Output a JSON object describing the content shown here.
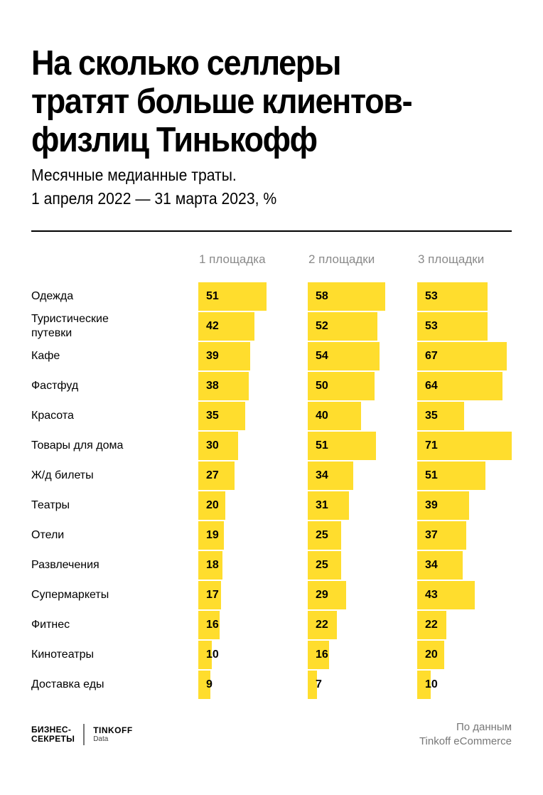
{
  "header": {
    "title_lines": [
      "На сколько селлеры",
      "тратят больше клиентов-",
      "физлиц Тинькофф"
    ],
    "subtitle_lines": [
      "Месячные медианные траты.",
      "1 апреля 2022 — 31 марта 2023, %"
    ]
  },
  "columns": [
    "1 площадка",
    "2 площадки",
    "3 площадки"
  ],
  "rows": [
    {
      "label": "Одежда",
      "values": [
        "51",
        "58",
        "53"
      ]
    },
    {
      "label": "Туристические путевки",
      "values": [
        "42",
        "52",
        "53"
      ]
    },
    {
      "label": "Кафе",
      "values": [
        "39",
        "54",
        "67"
      ]
    },
    {
      "label": "Фастфуд",
      "values": [
        "38",
        "50",
        "64"
      ]
    },
    {
      "label": "Красота",
      "values": [
        "35",
        "40",
        "35"
      ]
    },
    {
      "label": "Товары для дома",
      "values": [
        "30",
        "51",
        "71"
      ]
    },
    {
      "label": "Ж/д билеты",
      "values": [
        "27",
        "34",
        "51"
      ]
    },
    {
      "label": "Театры",
      "values": [
        "20",
        "31",
        "39"
      ]
    },
    {
      "label": "Отели",
      "values": [
        "19",
        "25",
        "37"
      ]
    },
    {
      "label": "Развлечения",
      "values": [
        "18",
        "25",
        "34"
      ]
    },
    {
      "label": "Супермаркеты",
      "values": [
        "17",
        "29",
        "43"
      ]
    },
    {
      "label": "Фитнес",
      "values": [
        "16",
        "22",
        "22"
      ]
    },
    {
      "label": "Кинотеатры",
      "values": [
        "10",
        "16",
        "20"
      ]
    },
    {
      "label": "Доставка еды",
      "values": [
        "9",
        "7",
        "10"
      ]
    }
  ],
  "footer": {
    "logo_left": [
      "БИЗНЕС-",
      "СЕКРЕТЫ"
    ],
    "logo_right_title": "TINKOFF",
    "logo_right_sub": "Data",
    "source_lines": [
      "По данным",
      "Tinkoff eCommerce"
    ]
  },
  "colors": {
    "bar": "#FFDD2D",
    "text": "#000000",
    "muted": "#8a8a8a"
  },
  "chart_data": {
    "type": "bar",
    "orientation": "horizontal",
    "title": "На сколько селлеры тратят больше клиентов-физлиц Тинькофф",
    "subtitle": "Месячные медианные траты. 1 апреля 2022 — 31 марта 2023, %",
    "categories": [
      "Одежда",
      "Туристические путевки",
      "Кафе",
      "Фастфуд",
      "Красота",
      "Товары для дома",
      "Ж/д билеты",
      "Театры",
      "Отели",
      "Развлечения",
      "Супермаркеты",
      "Фитнес",
      "Кинотеатры",
      "Доставка еды"
    ],
    "series": [
      {
        "name": "1 площадка",
        "values": [
          51,
          42,
          39,
          38,
          35,
          30,
          27,
          20,
          19,
          18,
          17,
          16,
          10,
          9
        ]
      },
      {
        "name": "2 площадки",
        "values": [
          58,
          52,
          54,
          50,
          40,
          51,
          34,
          31,
          25,
          25,
          29,
          22,
          16,
          7
        ]
      },
      {
        "name": "3 площадки",
        "values": [
          53,
          53,
          67,
          64,
          35,
          71,
          51,
          39,
          37,
          34,
          43,
          22,
          20,
          10
        ]
      }
    ],
    "xlabel": "",
    "ylabel": "",
    "unit": "%",
    "source": "По данным Tinkoff eCommerce"
  }
}
